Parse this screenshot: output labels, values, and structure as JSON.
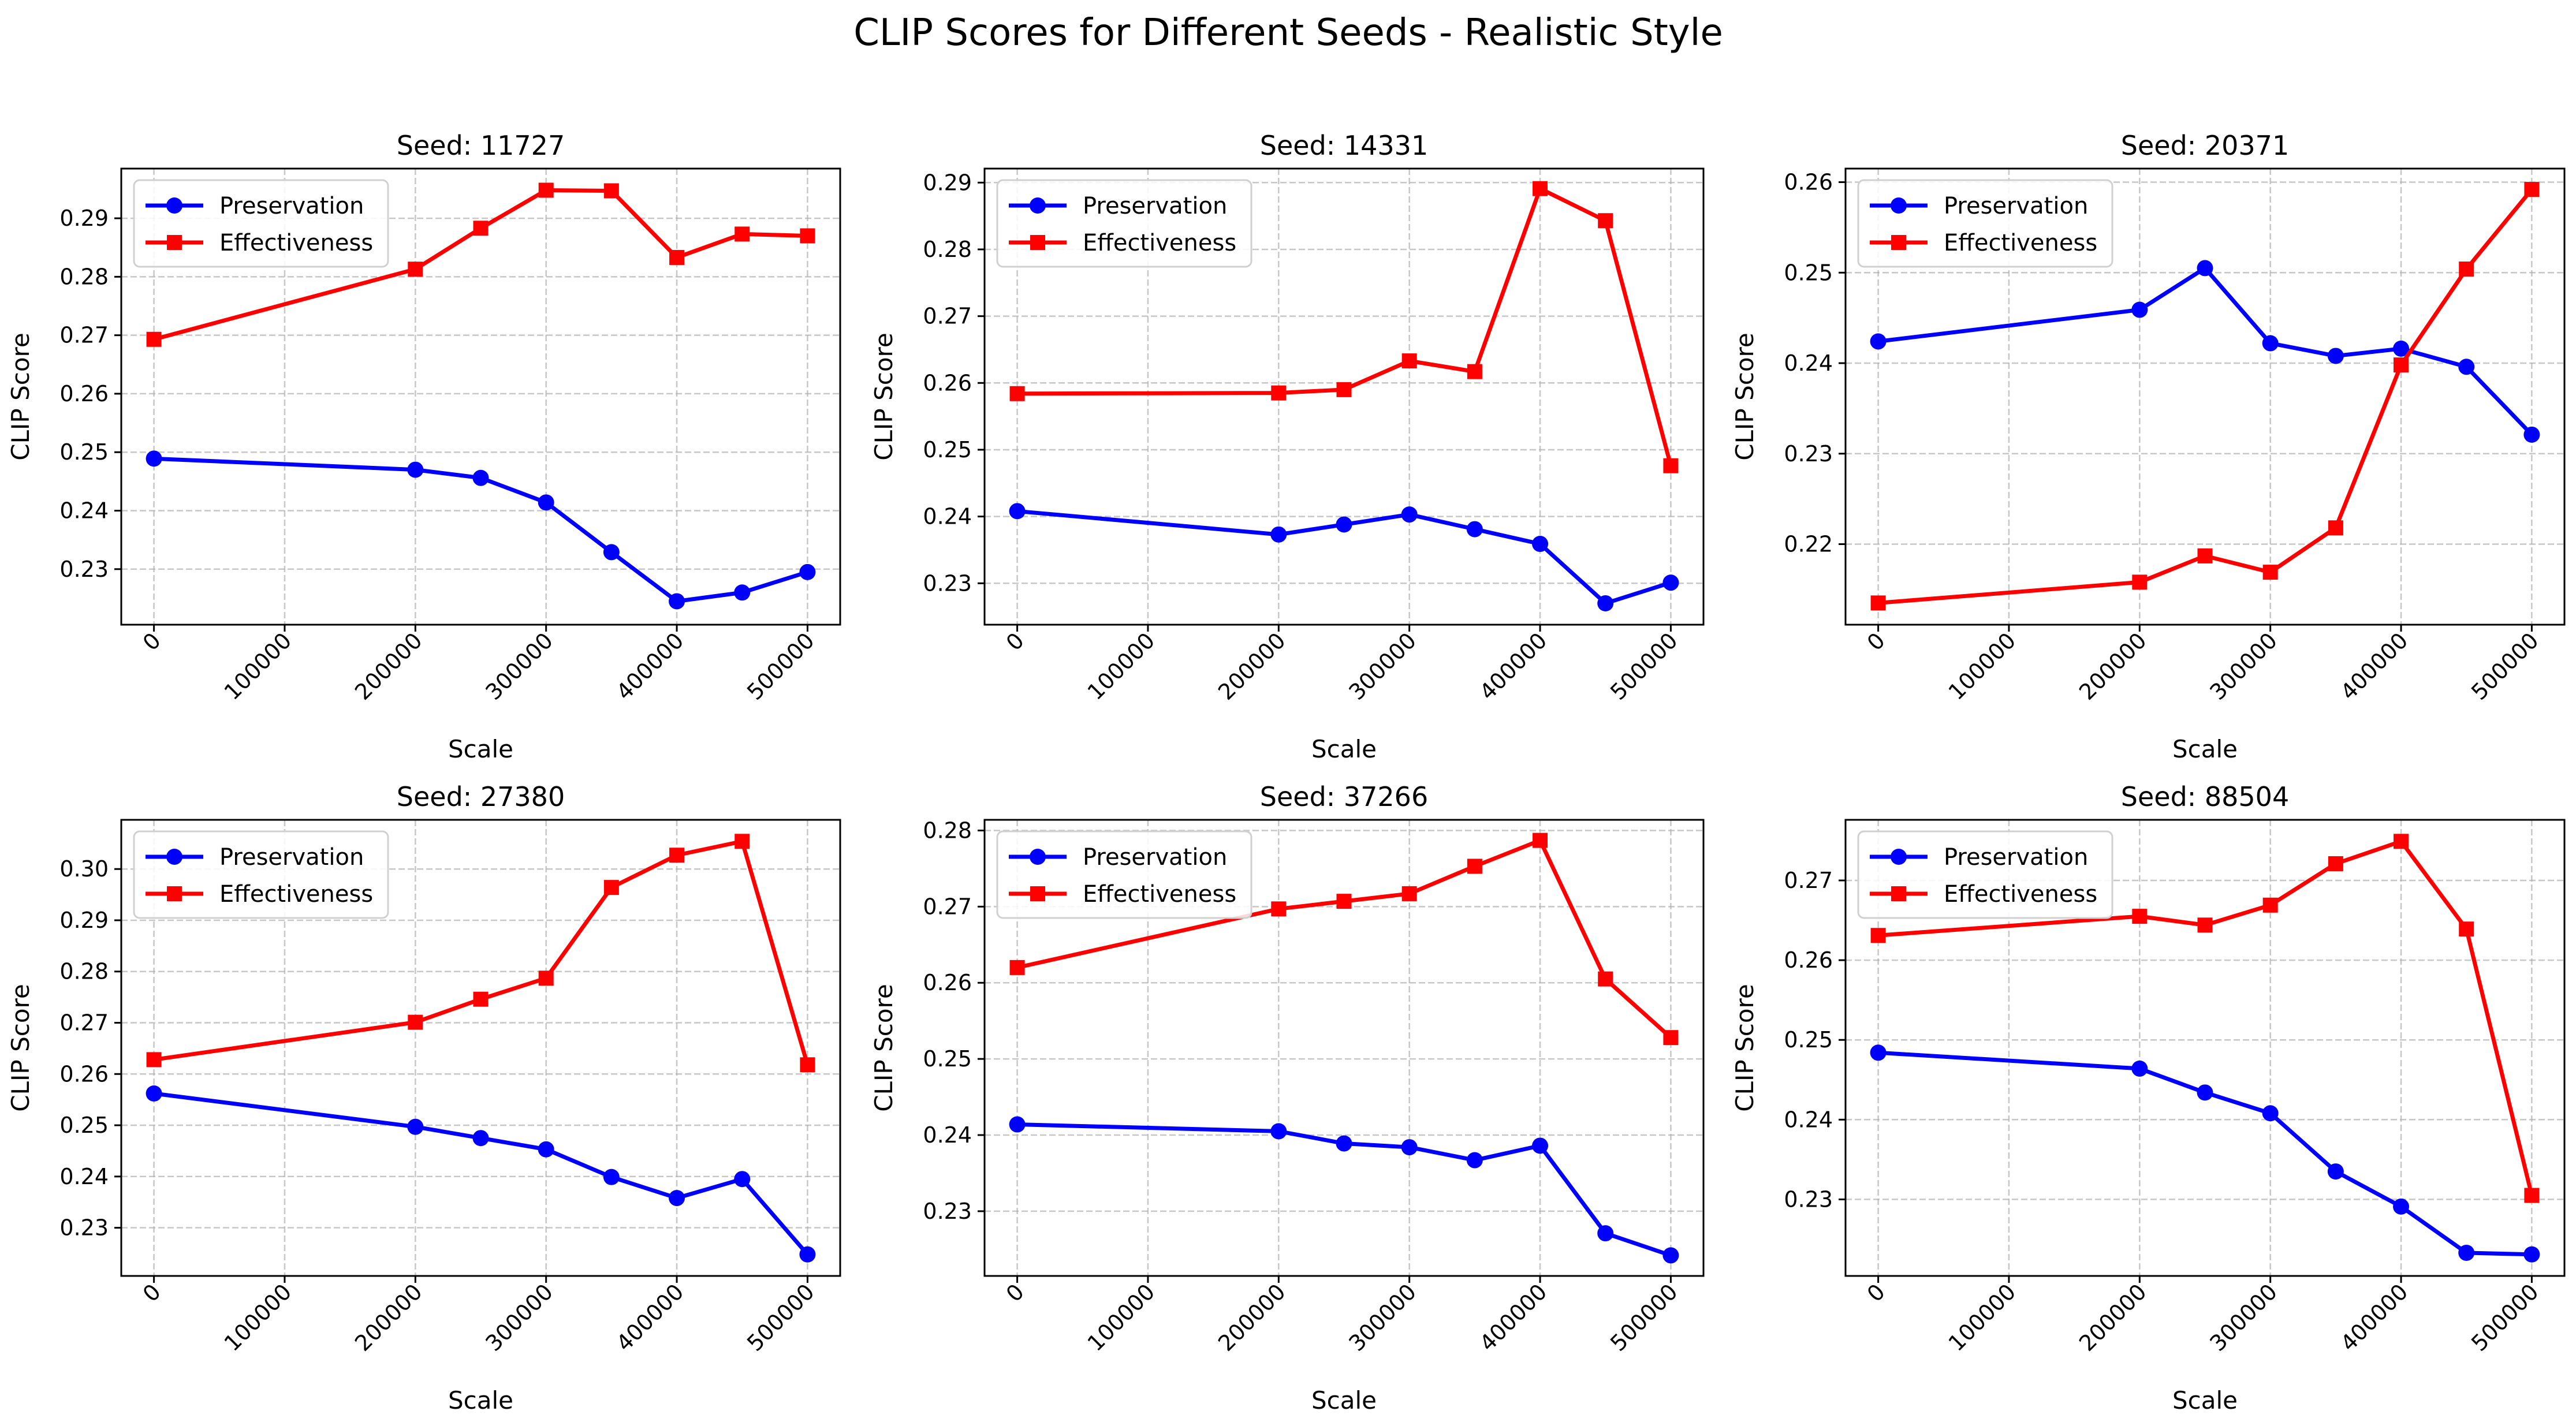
{
  "figure": {
    "title": "CLIP Scores for Different Seeds - Realistic Style"
  },
  "chart_data": [
    {
      "type": "line",
      "title": "Seed: 11727",
      "xlabel": "Scale",
      "ylabel": "CLIP Score",
      "x": [
        0,
        200000,
        250000,
        300000,
        350000,
        400000,
        450000,
        500000
      ],
      "xticks": [
        0,
        100000,
        200000,
        300000,
        400000,
        500000
      ],
      "yticks": [
        0.23,
        0.24,
        0.25,
        0.26,
        0.27,
        0.28,
        0.29
      ],
      "ylim": [
        0.2205,
        0.2985
      ],
      "xlim": [
        -25000,
        525000
      ],
      "grid": true,
      "legend_position": "upper left",
      "series": [
        {
          "name": "Preservation",
          "color": "#0000ff",
          "marker": "circle",
          "values": [
            0.2489,
            0.247,
            0.2456,
            0.2414,
            0.2329,
            0.2245,
            0.226,
            0.2295
          ]
        },
        {
          "name": "Effectiveness",
          "color": "#ff0000",
          "marker": "square",
          "values": [
            0.2693,
            0.2813,
            0.2883,
            0.2948,
            0.2947,
            0.2833,
            0.2873,
            0.287
          ]
        }
      ]
    },
    {
      "type": "line",
      "title": "Seed: 14331",
      "xlabel": "Scale",
      "ylabel": "CLIP Score",
      "x": [
        0,
        200000,
        250000,
        300000,
        350000,
        400000,
        450000,
        500000
      ],
      "xticks": [
        0,
        100000,
        200000,
        300000,
        400000,
        500000
      ],
      "yticks": [
        0.23,
        0.24,
        0.25,
        0.26,
        0.27,
        0.28,
        0.29
      ],
      "ylim": [
        0.2238,
        0.2921
      ],
      "xlim": [
        -25000,
        525000
      ],
      "grid": true,
      "legend_position": "upper left",
      "series": [
        {
          "name": "Preservation",
          "color": "#0000ff",
          "marker": "circle",
          "values": [
            0.2408,
            0.2373,
            0.2388,
            0.2403,
            0.2381,
            0.2359,
            0.227,
            0.2301
          ]
        },
        {
          "name": "Effectiveness",
          "color": "#ff0000",
          "marker": "square",
          "values": [
            0.2584,
            0.2585,
            0.259,
            0.2633,
            0.2617,
            0.2891,
            0.2843,
            0.2476
          ]
        }
      ]
    },
    {
      "type": "line",
      "title": "Seed: 20371",
      "xlabel": "Scale",
      "ylabel": "CLIP Score",
      "x": [
        0,
        200000,
        250000,
        300000,
        350000,
        400000,
        450000,
        500000
      ],
      "xticks": [
        0,
        100000,
        200000,
        300000,
        400000,
        500000
      ],
      "yticks": [
        0.22,
        0.23,
        0.24,
        0.25,
        0.26
      ],
      "ylim": [
        0.2111,
        0.2615
      ],
      "xlim": [
        -25000,
        525000
      ],
      "grid": true,
      "legend_position": "upper left",
      "series": [
        {
          "name": "Preservation",
          "color": "#0000ff",
          "marker": "circle",
          "values": [
            0.2424,
            0.2459,
            0.2505,
            0.2422,
            0.2408,
            0.2416,
            0.2396,
            0.2321
          ]
        },
        {
          "name": "Effectiveness",
          "color": "#ff0000",
          "marker": "square",
          "values": [
            0.2135,
            0.2158,
            0.2187,
            0.2169,
            0.2218,
            0.2398,
            0.2504,
            0.2592
          ]
        }
      ]
    },
    {
      "type": "line",
      "title": "Seed: 27380",
      "xlabel": "Scale",
      "ylabel": "CLIP Score",
      "x": [
        0,
        200000,
        250000,
        300000,
        350000,
        400000,
        450000,
        500000
      ],
      "xticks": [
        0,
        100000,
        200000,
        300000,
        400000,
        500000
      ],
      "yticks": [
        0.23,
        0.24,
        0.25,
        0.26,
        0.27,
        0.28,
        0.29,
        0.3
      ],
      "ylim": [
        0.2206,
        0.3096
      ],
      "xlim": [
        -25000,
        525000
      ],
      "grid": true,
      "legend_position": "upper left",
      "series": [
        {
          "name": "Preservation",
          "color": "#0000ff",
          "marker": "circle",
          "values": [
            0.2562,
            0.2497,
            0.2475,
            0.2453,
            0.2399,
            0.2358,
            0.2395,
            0.2248
          ]
        },
        {
          "name": "Effectiveness",
          "color": "#ff0000",
          "marker": "square",
          "values": [
            0.2628,
            0.2701,
            0.2746,
            0.2787,
            0.2964,
            0.3027,
            0.3054,
            0.2618
          ]
        }
      ]
    },
    {
      "type": "line",
      "title": "Seed: 37266",
      "xlabel": "Scale",
      "ylabel": "CLIP Score",
      "x": [
        0,
        200000,
        250000,
        300000,
        350000,
        400000,
        450000,
        500000
      ],
      "xticks": [
        0,
        100000,
        200000,
        300000,
        400000,
        500000
      ],
      "yticks": [
        0.23,
        0.24,
        0.25,
        0.26,
        0.27,
        0.28
      ],
      "ylim": [
        0.2215,
        0.2814
      ],
      "xlim": [
        -25000,
        525000
      ],
      "grid": true,
      "legend_position": "upper left",
      "series": [
        {
          "name": "Preservation",
          "color": "#0000ff",
          "marker": "circle",
          "values": [
            0.2414,
            0.2405,
            0.2389,
            0.2384,
            0.2367,
            0.2386,
            0.2271,
            0.2242
          ]
        },
        {
          "name": "Effectiveness",
          "color": "#ff0000",
          "marker": "square",
          "values": [
            0.262,
            0.2697,
            0.2707,
            0.2717,
            0.2753,
            0.2787,
            0.2605,
            0.2528
          ]
        }
      ]
    },
    {
      "type": "line",
      "title": "Seed: 88504",
      "xlabel": "Scale",
      "ylabel": "CLIP Score",
      "x": [
        0,
        200000,
        250000,
        300000,
        350000,
        400000,
        450000,
        500000
      ],
      "xticks": [
        0,
        100000,
        200000,
        300000,
        400000,
        500000
      ],
      "yticks": [
        0.23,
        0.24,
        0.25,
        0.26,
        0.27
      ],
      "ylim": [
        0.2204,
        0.2776
      ],
      "xlim": [
        -25000,
        525000
      ],
      "grid": true,
      "legend_position": "upper left",
      "series": [
        {
          "name": "Preservation",
          "color": "#0000ff",
          "marker": "circle",
          "values": [
            0.2484,
            0.2464,
            0.2434,
            0.2408,
            0.2335,
            0.2291,
            0.2233,
            0.2231
          ]
        },
        {
          "name": "Effectiveness",
          "color": "#ff0000",
          "marker": "square",
          "values": [
            0.2631,
            0.2655,
            0.2644,
            0.2669,
            0.2721,
            0.2749,
            0.2639,
            0.2305
          ]
        }
      ]
    }
  ]
}
